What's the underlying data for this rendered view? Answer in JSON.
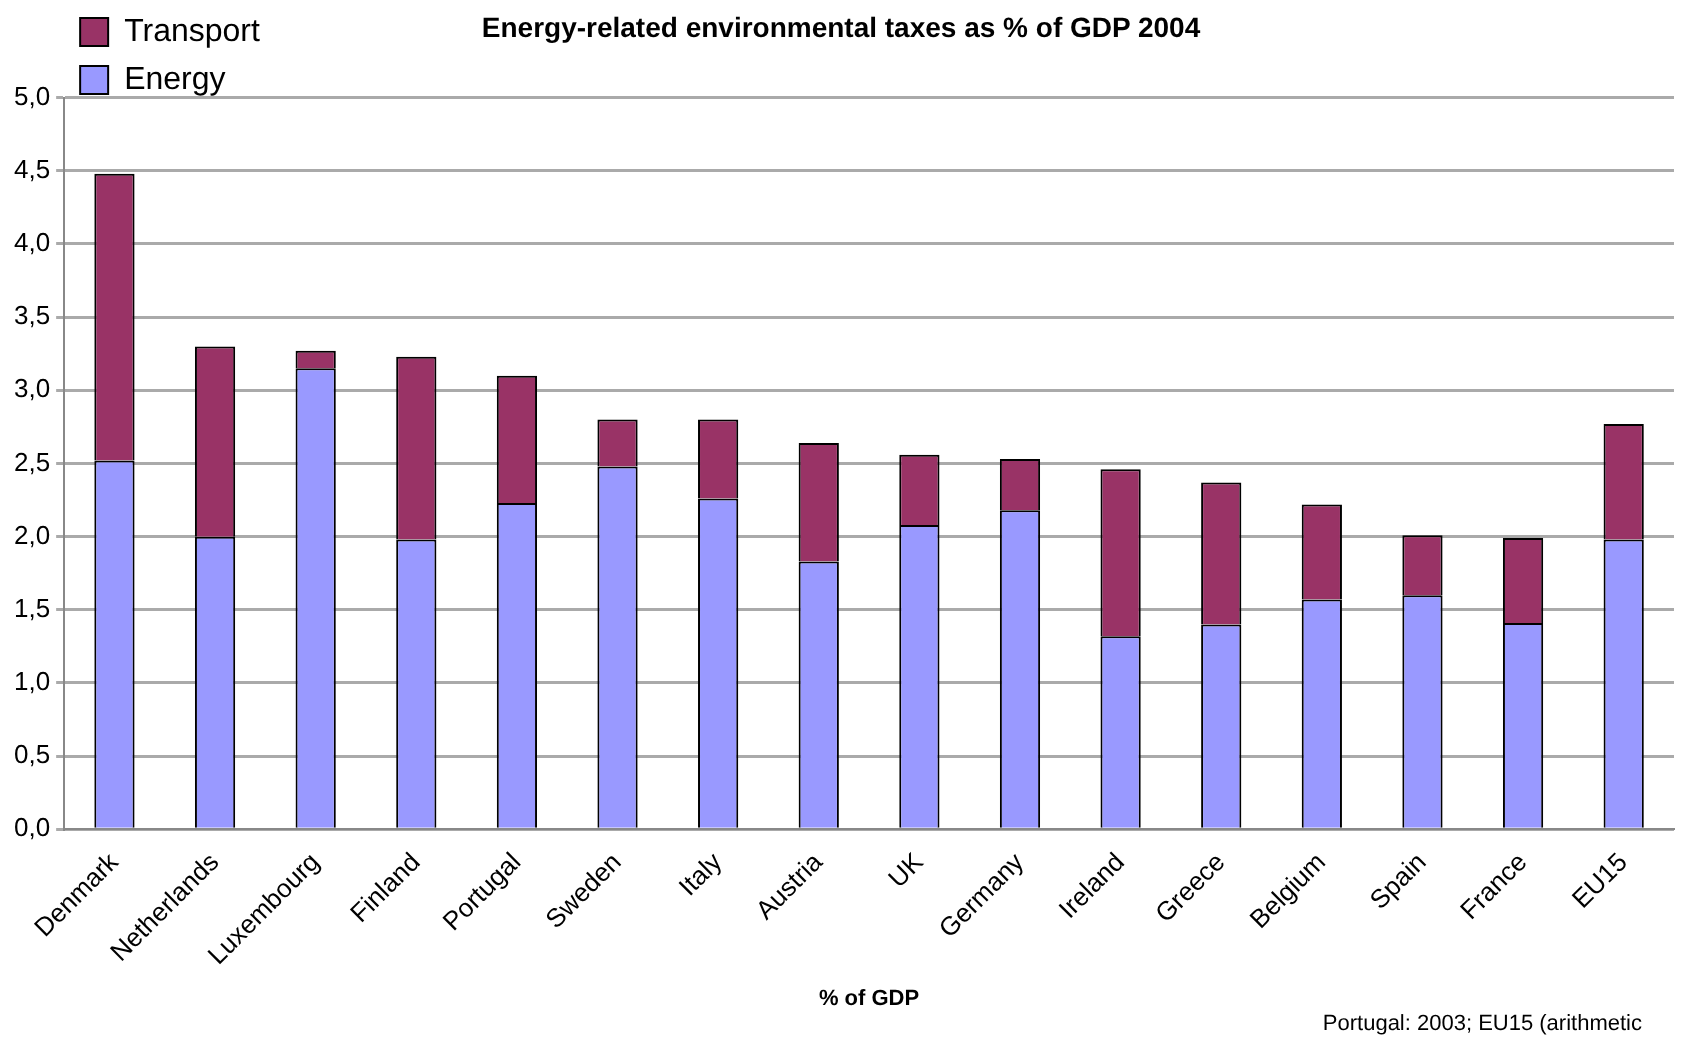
{
  "chart_data": {
    "type": "bar",
    "title": "Energy-related environmental taxes as % of GDP 2004",
    "xlabel": "% of GDP",
    "stacked": true,
    "categories": [
      "Denmark",
      "Netherlands",
      "Luxembourg",
      "Finland",
      "Portugal",
      "Sweden",
      "Italy",
      "Austria",
      "UK",
      "Germany",
      "Ireland",
      "Greece",
      "Belgium",
      "Spain",
      "France",
      "EU15"
    ],
    "series": [
      {
        "name": "Energy",
        "color": "#9999ff",
        "values": [
          2.52,
          2.0,
          3.15,
          1.98,
          2.23,
          2.48,
          2.26,
          1.83,
          2.08,
          2.18,
          1.32,
          1.4,
          1.57,
          1.6,
          1.41,
          1.98
        ]
      },
      {
        "name": "Transport",
        "color": "#993366",
        "values": [
          1.96,
          1.3,
          0.12,
          1.25,
          0.87,
          0.32,
          0.54,
          0.81,
          0.48,
          0.35,
          1.14,
          0.97,
          0.65,
          0.41,
          0.58,
          0.79
        ]
      }
    ],
    "ylim": [
      0,
      5
    ],
    "yticks": [
      {
        "value": 0,
        "label": "0,0"
      },
      {
        "value": 0.5,
        "label": "0,5"
      },
      {
        "value": 1,
        "label": "1,0"
      },
      {
        "value": 1.5,
        "label": "1,5"
      },
      {
        "value": 2,
        "label": "2,0"
      },
      {
        "value": 2.5,
        "label": "2,5"
      },
      {
        "value": 3,
        "label": "3,0"
      },
      {
        "value": 3.5,
        "label": "3,5"
      },
      {
        "value": 4,
        "label": "4,0"
      },
      {
        "value": 4.5,
        "label": "4,5"
      },
      {
        "value": 5,
        "label": "5,0"
      }
    ],
    "grid": "y",
    "legend": "top left",
    "annotations": [
      "Portugal: 2003; EU15 (arithmetic"
    ]
  }
}
